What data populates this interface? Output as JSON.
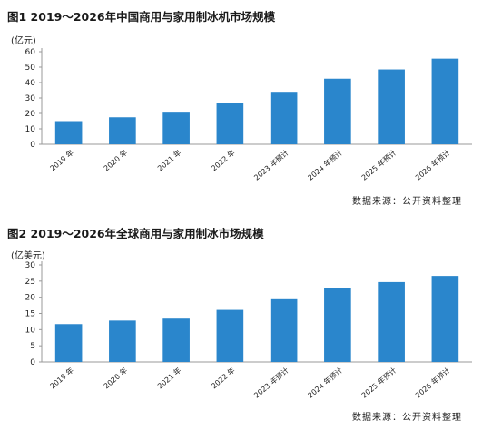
{
  "colors": {
    "bar": "#2a86cc",
    "axis": "#999999",
    "grid": "#cfcfcf"
  },
  "chart_data": [
    {
      "type": "bar",
      "title": "图1  2019～2026年中国商用与家用制冰机市场规模",
      "unit_label": "(亿元)",
      "source": "数据来源：公开资料整理",
      "categories": [
        "2019 年",
        "2020 年",
        "2021 年",
        "2022 年",
        "2023 年预计",
        "2024 年预计",
        "2025 年预计",
        "2026 年预计"
      ],
      "values": [
        15,
        17.5,
        20.5,
        26.5,
        34,
        42.5,
        48.5,
        55.5
      ],
      "yticks": [
        0,
        10,
        20,
        30,
        40,
        50,
        60
      ],
      "ylim": [
        0,
        60
      ],
      "grid": false,
      "legend": "none"
    },
    {
      "type": "bar",
      "title": "图2  2019～2026年全球商用与家用制冰市场规模",
      "unit_label": "(亿美元)",
      "source": "数据来源：公开资料整理",
      "categories": [
        "2019 年",
        "2020 年",
        "2021 年",
        "2022 年",
        "2023 年预计",
        "2024 年预计",
        "2025 年预计",
        "2026 年预计"
      ],
      "values": [
        11.7,
        12.8,
        13.4,
        16.1,
        19.4,
        22.9,
        24.7,
        26.6
      ],
      "yticks": [
        0,
        5,
        10,
        15,
        20,
        25,
        30
      ],
      "ylim": [
        0,
        30
      ],
      "grid": false,
      "legend": "none"
    }
  ]
}
